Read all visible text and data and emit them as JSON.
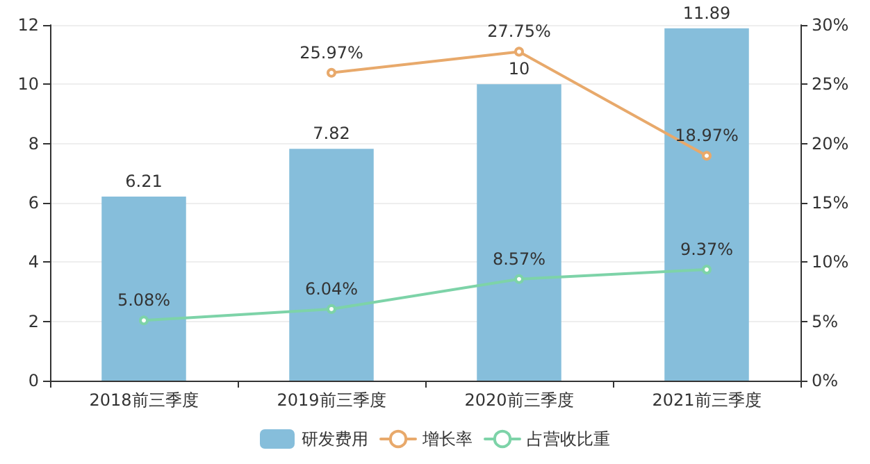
{
  "chart_data": {
    "type": "bar",
    "categories": [
      "2018前三季度",
      "2019前三季度",
      "2020前三季度",
      "2021前三季度"
    ],
    "series": [
      {
        "name": "研发费用",
        "color": "#86bedb",
        "values": [
          6.21,
          7.82,
          10,
          11.89
        ],
        "value_labels": [
          "6.21",
          "7.82",
          "10",
          "11.89"
        ]
      },
      {
        "name": "增长率",
        "type": "line",
        "axis": "y2",
        "color": "#e8a96b",
        "values": [
          null,
          25.97,
          27.75,
          18.97
        ],
        "value_labels": [
          null,
          "25.97%",
          "27.75%",
          "18.97%"
        ]
      },
      {
        "name": "占营收比重",
        "type": "line",
        "axis": "y2",
        "color": "#7dd3a8",
        "values": [
          5.08,
          6.04,
          8.57,
          9.37
        ],
        "value_labels": [
          "5.08%",
          "6.04%",
          "8.57%",
          "9.37%"
        ]
      }
    ],
    "ylim": [
      0,
      12
    ],
    "yticks": [
      0,
      2,
      4,
      6,
      8,
      10,
      12
    ],
    "y2lim": [
      0,
      30
    ],
    "y2ticks": [
      {
        "value": 0,
        "label": "0%"
      },
      {
        "value": 5,
        "label": "5%"
      },
      {
        "value": 10,
        "label": "10%"
      },
      {
        "value": 15,
        "label": "15%"
      },
      {
        "value": 20,
        "label": "20%"
      },
      {
        "value": 25,
        "label": "25%"
      },
      {
        "value": 30,
        "label": "30%"
      }
    ],
    "grid": "y",
    "legend": "bottom",
    "marker": "circle",
    "line_style": "solid"
  }
}
